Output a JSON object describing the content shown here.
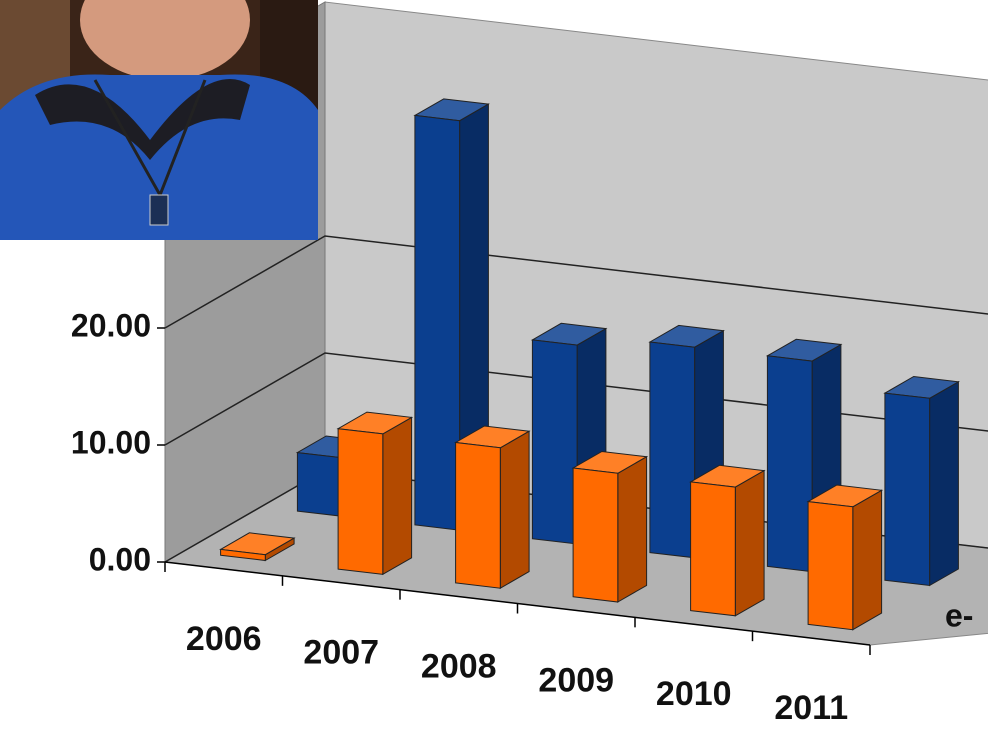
{
  "chart_data": {
    "type": "bar3d",
    "categories": [
      "2006",
      "2007",
      "2008",
      "2009",
      "2010",
      "2011"
    ],
    "series": [
      {
        "color": "#0b3f8f",
        "values": [
          5,
          35,
          17,
          18,
          18,
          16
        ]
      },
      {
        "color": "#ff6a00",
        "values": [
          0.5,
          12,
          12,
          11,
          11,
          10.5
        ]
      }
    ],
    "ylim": [
      0,
      40
    ],
    "yticks": [
      {
        "value": 0,
        "label": "0.00"
      },
      {
        "value": 10,
        "label": "10.00"
      },
      {
        "value": 20,
        "label": "20.00"
      }
    ],
    "grid": true,
    "depth_axis_label": "e-"
  }
}
